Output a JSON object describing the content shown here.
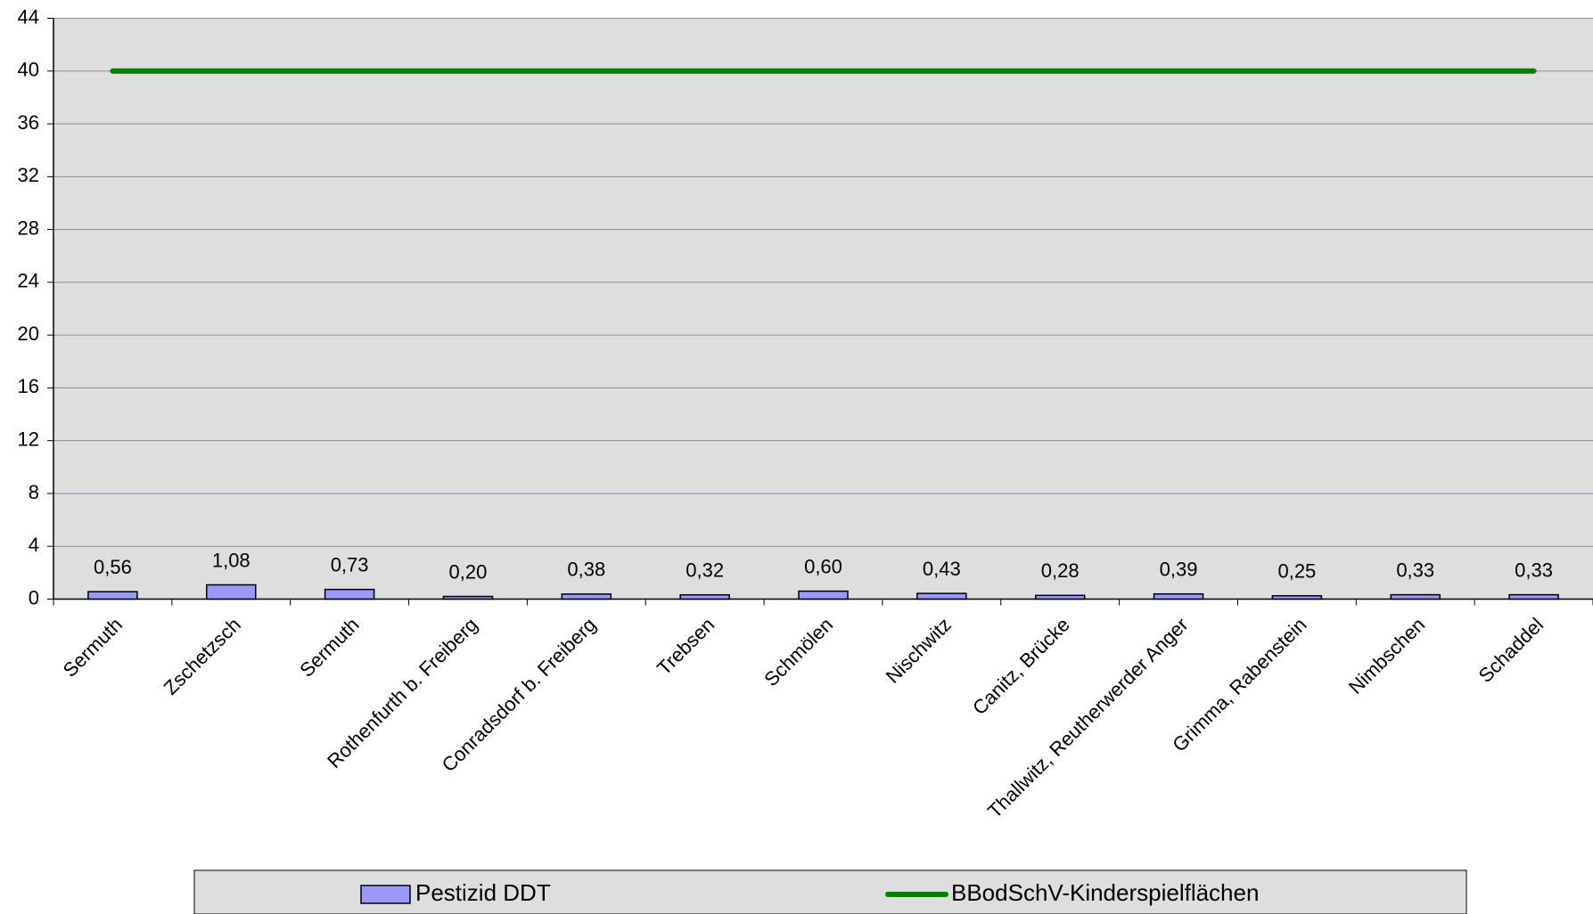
{
  "chart_data": {
    "type": "bar",
    "categories": [
      "Sermuth",
      "Zschetzsch",
      "Sermuth",
      "Rothenfurth b. Freiberg",
      "Conradsdorf b. Freiberg",
      "Trebsen",
      "Schmölen",
      "Nischwitz",
      "Canitz, Brücke",
      "Thallwitz, Reutherwerder Anger",
      "Grimma, Rabenstein",
      "Nimbschen",
      "Schaddel"
    ],
    "series": [
      {
        "name": "Pestizid DDT",
        "type": "bar",
        "color": "#9999ff",
        "values": [
          0.56,
          1.08,
          0.73,
          0.2,
          0.38,
          0.32,
          0.6,
          0.43,
          0.28,
          0.39,
          0.25,
          0.33,
          0.33
        ],
        "value_labels": [
          "0,56",
          "1,08",
          "0,73",
          "0,20",
          "0,38",
          "0,32",
          "0,60",
          "0,43",
          "0,28",
          "0,39",
          "0,25",
          "0,33",
          "0,33"
        ]
      },
      {
        "name": "BBodSchV-Kinderspielflächen",
        "type": "line",
        "color": "#008000",
        "values": [
          40,
          40,
          40,
          40,
          40,
          40,
          40,
          40,
          40,
          40,
          40,
          40,
          40
        ]
      }
    ],
    "ylim": [
      0,
      44
    ],
    "yticks": [
      0,
      4,
      8,
      12,
      16,
      20,
      24,
      28,
      32,
      36,
      40,
      44
    ],
    "grid": true,
    "legend": "bottom"
  }
}
